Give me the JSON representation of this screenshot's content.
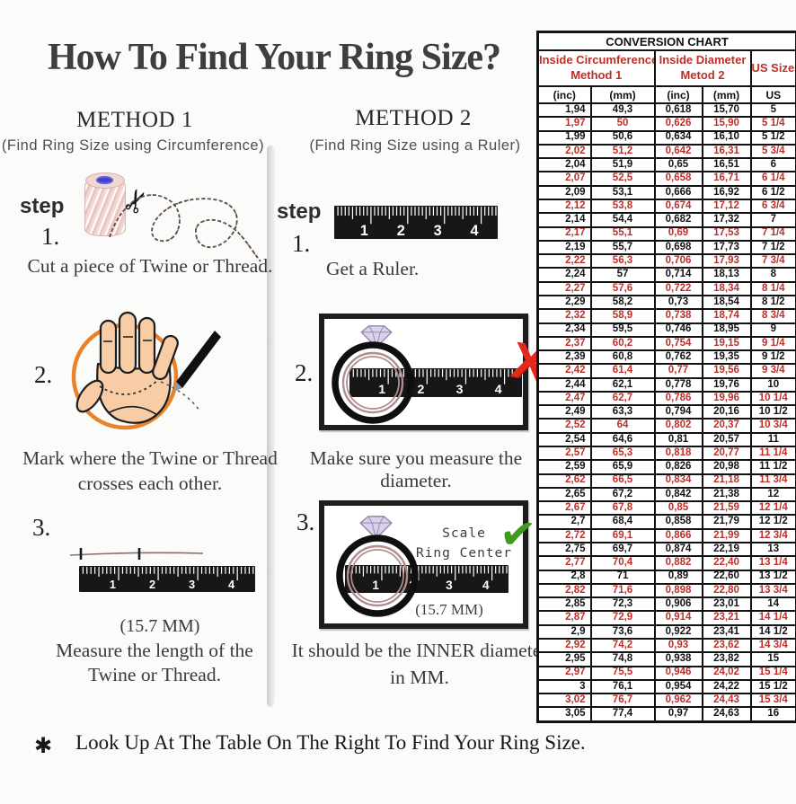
{
  "page": {
    "title": "How To Find Your Ring Size?",
    "footnote_symbol": "✱",
    "footnote": "Look Up At The Table On The Right To Find Your Ring Size."
  },
  "icons": {
    "scissors": "✂",
    "check": "✔",
    "cross": "X"
  },
  "colors": {
    "table_red": "#bf2f27",
    "circle_orange": "#e8832a",
    "check_green": "#3f9b1e",
    "cross_red": "#e7271c",
    "diamond_lilac": "#dcd1ec",
    "ruler_black": "#171717"
  },
  "ruler_numbers": [
    "1",
    "2",
    "3",
    "4"
  ],
  "method1": {
    "heading": "METHOD 1",
    "subheading": "(Find Ring Size using Circumference)",
    "step_label": "step",
    "steps": [
      {
        "number": "1.",
        "caption": "Cut a piece of  Twine or Thread."
      },
      {
        "number": "2.",
        "caption_line1": "Mark where the Twine or Thread",
        "caption_line2": "crosses each other."
      },
      {
        "number": "3.",
        "measure": "(15.7 MM)",
        "caption_line1": "Measure the length of the",
        "caption_line2": "Twine or Thread."
      }
    ]
  },
  "method2": {
    "heading": "METHOD 2",
    "subheading": "(Find Ring Size using a Ruler)",
    "step_label": "step",
    "steps": [
      {
        "number": "1.",
        "caption": "Get a Ruler."
      },
      {
        "number": "2.",
        "caption": "Make sure you measure the diameter."
      },
      {
        "number": "3.",
        "scale_line1": "Scale",
        "scale_line2": "Ring Center",
        "measure": "(15.7 MM)",
        "caption_line1": "It should be the INNER diameter",
        "caption_line2": "in MM."
      }
    ]
  },
  "conversion_chart": {
    "title": "CONVERSION CHART",
    "col_groups": [
      {
        "line1": "Inside Circumference",
        "line2": "Method 1"
      },
      {
        "line1": "Inside Diameter",
        "line2": "Metod 2"
      },
      {
        "line1": "US Sizes"
      }
    ],
    "sub_headers": [
      "(inc)",
      "(mm)",
      "(inc)",
      "(mm)",
      "US"
    ],
    "rows": [
      [
        "1,94",
        "49,3",
        "0,618",
        "15,70",
        "5"
      ],
      [
        "1,97",
        "50",
        "0,626",
        "15,90",
        "5 1/4"
      ],
      [
        "1,99",
        "50,6",
        "0,634",
        "16,10",
        "5 1/2"
      ],
      [
        "2,02",
        "51,2",
        "0,642",
        "16,31",
        "5 3/4"
      ],
      [
        "2,04",
        "51,9",
        "0,65",
        "16,51",
        "6"
      ],
      [
        "2,07",
        "52,5",
        "0,658",
        "16,71",
        "6 1/4"
      ],
      [
        "2,09",
        "53,1",
        "0,666",
        "16,92",
        "6 1/2"
      ],
      [
        "2,12",
        "53,8",
        "0,674",
        "17,12",
        "6 3/4"
      ],
      [
        "2,14",
        "54,4",
        "0,682",
        "17,32",
        "7"
      ],
      [
        "2,17",
        "55,1",
        "0,69",
        "17,53",
        "7 1/4"
      ],
      [
        "2,19",
        "55,7",
        "0,698",
        "17,73",
        "7 1/2"
      ],
      [
        "2,22",
        "56,3",
        "0,706",
        "17,93",
        "7 3/4"
      ],
      [
        "2,24",
        "57",
        "0,714",
        "18,13",
        "8"
      ],
      [
        "2,27",
        "57,6",
        "0,722",
        "18,34",
        "8 1/4"
      ],
      [
        "2,29",
        "58,2",
        "0,73",
        "18,54",
        "8 1/2"
      ],
      [
        "2,32",
        "58,9",
        "0,738",
        "18,74",
        "8 3/4"
      ],
      [
        "2,34",
        "59,5",
        "0,746",
        "18,95",
        "9"
      ],
      [
        "2,37",
        "60,2",
        "0,754",
        "19,15",
        "9 1/4"
      ],
      [
        "2,39",
        "60,8",
        "0,762",
        "19,35",
        "9 1/2"
      ],
      [
        "2,42",
        "61,4",
        "0,77",
        "19,56",
        "9 3/4"
      ],
      [
        "2,44",
        "62,1",
        "0,778",
        "19,76",
        "10"
      ],
      [
        "2,47",
        "62,7",
        "0,786",
        "19,96",
        "10 1/4"
      ],
      [
        "2,49",
        "63,3",
        "0,794",
        "20,16",
        "10 1/2"
      ],
      [
        "2,52",
        "64",
        "0,802",
        "20,37",
        "10 3/4"
      ],
      [
        "2,54",
        "64,6",
        "0,81",
        "20,57",
        "11"
      ],
      [
        "2,57",
        "65,3",
        "0,818",
        "20,77",
        "11 1/4"
      ],
      [
        "2,59",
        "65,9",
        "0,826",
        "20,98",
        "11 1/2"
      ],
      [
        "2,62",
        "66,5",
        "0,834",
        "21,18",
        "11 3/4"
      ],
      [
        "2,65",
        "67,2",
        "0,842",
        "21,38",
        "12"
      ],
      [
        "2,67",
        "67,8",
        "0,85",
        "21,59",
        "12 1/4"
      ],
      [
        "2,7",
        "68,4",
        "0,858",
        "21,79",
        "12 1/2"
      ],
      [
        "2,72",
        "69,1",
        "0,866",
        "21,99",
        "12 3/4"
      ],
      [
        "2,75",
        "69,7",
        "0,874",
        "22,19",
        "13"
      ],
      [
        "2,77",
        "70,4",
        "0,882",
        "22,40",
        "13 1/4"
      ],
      [
        "2,8",
        "71",
        "0,89",
        "22,60",
        "13 1/2"
      ],
      [
        "2,82",
        "71,6",
        "0,898",
        "22,80",
        "13 3/4"
      ],
      [
        "2,85",
        "72,3",
        "0,906",
        "23,01",
        "14"
      ],
      [
        "2,87",
        "72,9",
        "0,914",
        "23,21",
        "14 1/4"
      ],
      [
        "2,9",
        "73,6",
        "0,922",
        "23,41",
        "14 1/2"
      ],
      [
        "2,92",
        "74,2",
        "0,93",
        "23,62",
        "14 3/4"
      ],
      [
        "2,95",
        "74,8",
        "0,938",
        "23,82",
        "15"
      ],
      [
        "2,97",
        "75,5",
        "0,946",
        "24,02",
        "15 1/4"
      ],
      [
        "3",
        "76,1",
        "0,954",
        "24,22",
        "15 1/2"
      ],
      [
        "3,02",
        "76,7",
        "0,962",
        "24,43",
        "15 3/4"
      ],
      [
        "3,05",
        "77,4",
        "0,97",
        "24,63",
        "16"
      ]
    ]
  }
}
